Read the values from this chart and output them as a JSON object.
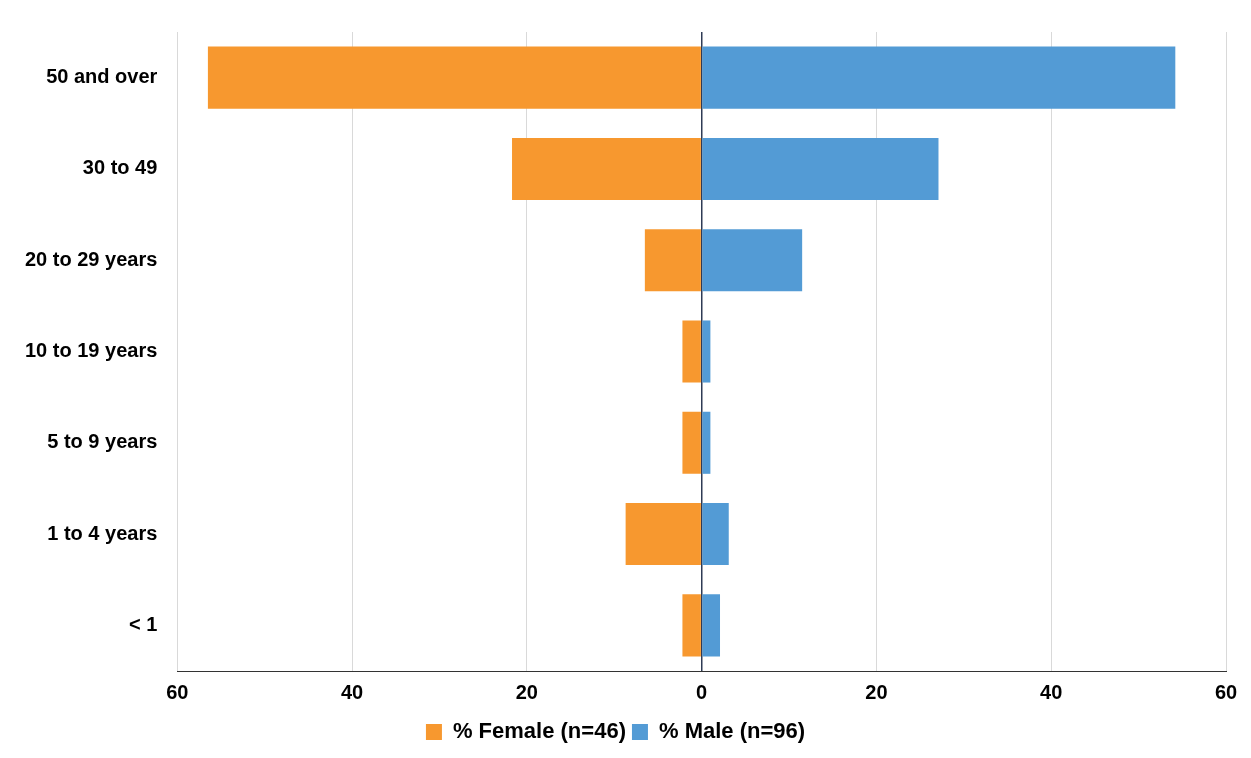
{
  "chart_data": {
    "type": "bar",
    "orientation": "horizontal",
    "stacked": true,
    "categories": [
      "50 and over",
      "30 to 49",
      "20 to 29 years",
      "10 to 19 years",
      "5 to 9 years",
      "1 to 4 years",
      "< 1"
    ],
    "series": [
      {
        "name": "% Female (n=46)",
        "color": "#f7982f",
        "values": [
          -56.5,
          -21.7,
          -6.5,
          -2.2,
          -2.2,
          -8.7,
          -2.2
        ]
      },
      {
        "name": "% Male (n=96)",
        "color": "#539bd5",
        "values": [
          54.2,
          27.1,
          11.5,
          1.0,
          1.0,
          3.1,
          2.1
        ]
      }
    ],
    "xlim": [
      -60,
      60
    ],
    "xticks": [
      {
        "value": -60,
        "label": "60"
      },
      {
        "value": -40,
        "label": "40"
      },
      {
        "value": -20,
        "label": "20"
      },
      0,
      20,
      40,
      60
    ],
    "grid": "x",
    "legend": "bottom"
  }
}
